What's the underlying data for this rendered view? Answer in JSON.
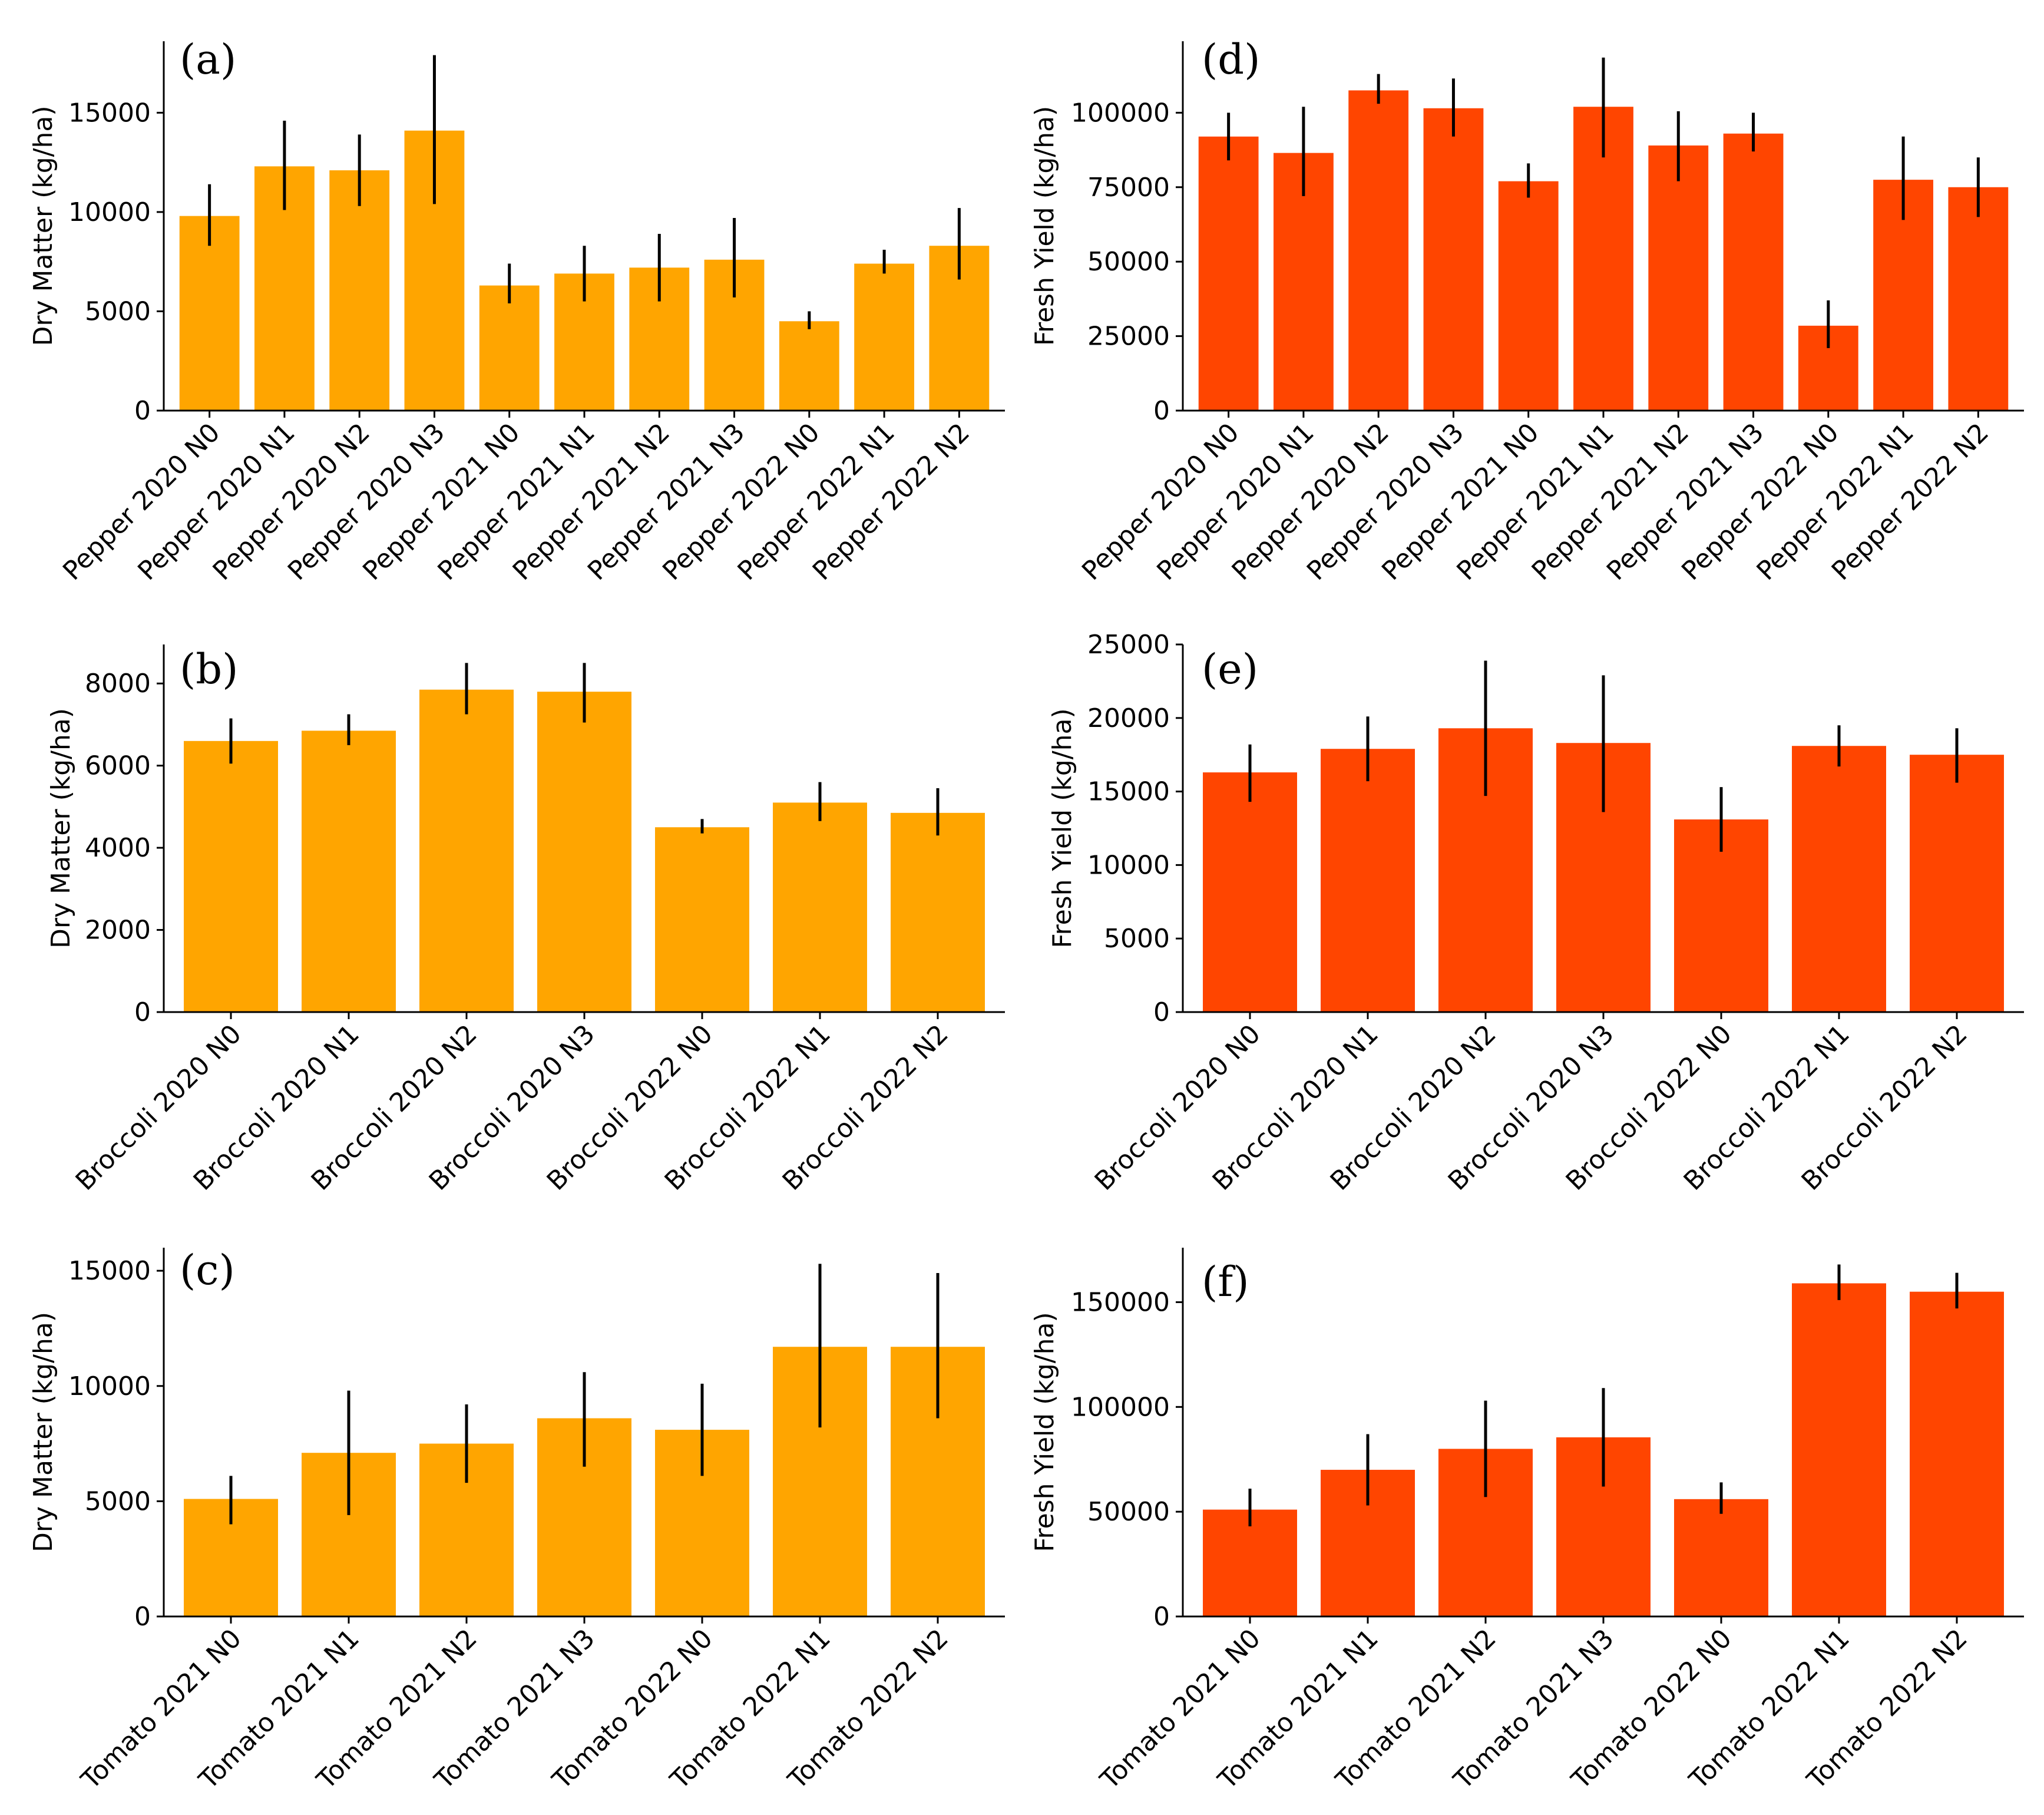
{
  "colors": {
    "dry_matter": "#FFA500",
    "fresh_yield": "#FF4500"
  },
  "chart_data": [
    {
      "id": "a",
      "label": "(a)",
      "type": "bar",
      "ylabel": "Dry Matter (kg/ha)",
      "ylim": [
        0,
        18600
      ],
      "yticks": [
        0,
        5000,
        10000,
        15000
      ],
      "color": "#FFA500",
      "categories": [
        "Pepper 2020 N0",
        "Pepper 2020 N1",
        "Pepper 2020 N2",
        "Pepper 2020 N3",
        "Pepper 2021 N0",
        "Pepper 2021 N1",
        "Pepper 2021 N2",
        "Pepper 2021 N3",
        "Pepper 2022 N0",
        "Pepper 2022 N1",
        "Pepper 2022 N2"
      ],
      "values": [
        9800,
        12300,
        12100,
        14100,
        6300,
        6900,
        7200,
        7600,
        4500,
        7400,
        8300
      ],
      "err_low": [
        8300,
        10100,
        10300,
        10400,
        5400,
        5500,
        5500,
        5700,
        4100,
        6900,
        6600
      ],
      "err_high": [
        11400,
        14600,
        13900,
        17900,
        7400,
        8300,
        8900,
        9700,
        5000,
        8100,
        10200
      ]
    },
    {
      "id": "b",
      "label": "(b)",
      "type": "bar",
      "ylabel": "Dry Matter (kg/ha)",
      "ylim": [
        0,
        8950
      ],
      "yticks": [
        0,
        2000,
        4000,
        6000,
        8000
      ],
      "color": "#FFA500",
      "categories": [
        "Broccoli 2020 N0",
        "Broccoli 2020 N1",
        "Broccoli 2020 N2",
        "Broccoli 2020 N3",
        "Broccoli 2022 N0",
        "Broccoli 2022 N1",
        "Broccoli 2022 N2"
      ],
      "values": [
        6600,
        6850,
        7850,
        7800,
        4500,
        5100,
        4850
      ],
      "err_low": [
        6050,
        6500,
        7250,
        7050,
        4350,
        4650,
        4300
      ],
      "err_high": [
        7150,
        7250,
        8500,
        8500,
        4700,
        5600,
        5450
      ]
    },
    {
      "id": "c",
      "label": "(c)",
      "type": "bar",
      "ylabel": "Dry Matter (kg/ha)",
      "ylim": [
        0,
        16000
      ],
      "yticks": [
        0,
        5000,
        10000,
        15000
      ],
      "color": "#FFA500",
      "categories": [
        "Tomato 2021 N0",
        "Tomato 2021 N1",
        "Tomato 2021 N2",
        "Tomato 2021 N3",
        "Tomato 2022 N0",
        "Tomato 2022 N1",
        "Tomato 2022 N2"
      ],
      "values": [
        5100,
        7100,
        7500,
        8600,
        8100,
        11700,
        11700
      ],
      "err_low": [
        4000,
        4400,
        5800,
        6500,
        6100,
        8200,
        8600
      ],
      "err_high": [
        6100,
        9800,
        9200,
        10600,
        10100,
        15300,
        14900
      ]
    },
    {
      "id": "d",
      "label": "(d)",
      "type": "bar",
      "ylabel": "Fresh Yield (kg/ha)",
      "ylim": [
        0,
        124000
      ],
      "yticks": [
        0,
        25000,
        50000,
        75000,
        100000
      ],
      "color": "#FF4500",
      "categories": [
        "Pepper 2020 N0",
        "Pepper 2020 N1",
        "Pepper 2020 N2",
        "Pepper 2020 N3",
        "Pepper 2021 N0",
        "Pepper 2021 N1",
        "Pepper 2021 N2",
        "Pepper 2021 N3",
        "Pepper 2022 N0",
        "Pepper 2022 N1",
        "Pepper 2022 N2"
      ],
      "values": [
        92000,
        86500,
        107500,
        101500,
        77000,
        102000,
        89000,
        93000,
        28500,
        77500,
        75000
      ],
      "err_low": [
        84000,
        72000,
        103000,
        92000,
        71500,
        85000,
        77000,
        87000,
        21000,
        64000,
        65000
      ],
      "err_high": [
        100000,
        102000,
        113000,
        111500,
        83000,
        118500,
        100500,
        100000,
        37000,
        92000,
        85000
      ]
    },
    {
      "id": "e",
      "label": "(e)",
      "type": "bar",
      "ylabel": "Fresh Yield (kg/ha)",
      "ylim": [
        0,
        25000
      ],
      "yticks": [
        0,
        5000,
        10000,
        15000,
        20000,
        25000
      ],
      "color": "#FF4500",
      "categories": [
        "Broccoli 2020 N0",
        "Broccoli 2020 N1",
        "Broccoli 2020 N2",
        "Broccoli 2020 N3",
        "Broccoli 2022 N0",
        "Broccoli 2022 N1",
        "Broccoli 2022 N2"
      ],
      "values": [
        16300,
        17900,
        19300,
        18300,
        13100,
        18100,
        17500
      ],
      "err_low": [
        14300,
        15700,
        14700,
        13600,
        10900,
        16700,
        15600
      ],
      "err_high": [
        18200,
        20100,
        23900,
        22900,
        15300,
        19500,
        19300
      ]
    },
    {
      "id": "f",
      "label": "(f)",
      "type": "bar",
      "ylabel": "Fresh Yield (kg/ha)",
      "ylim": [
        0,
        176000
      ],
      "yticks": [
        0,
        50000,
        100000,
        150000
      ],
      "color": "#FF4500",
      "categories": [
        "Tomato 2021 N0",
        "Tomato 2021 N1",
        "Tomato 2021 N2",
        "Tomato 2021 N3",
        "Tomato 2022 N0",
        "Tomato 2022 N1",
        "Tomato 2022 N2"
      ],
      "values": [
        51000,
        70000,
        80000,
        85500,
        56000,
        159000,
        155000
      ],
      "err_low": [
        43000,
        53000,
        57000,
        62000,
        49000,
        151000,
        147000
      ],
      "err_high": [
        61000,
        87000,
        103000,
        109000,
        64000,
        168000,
        164000
      ]
    }
  ]
}
